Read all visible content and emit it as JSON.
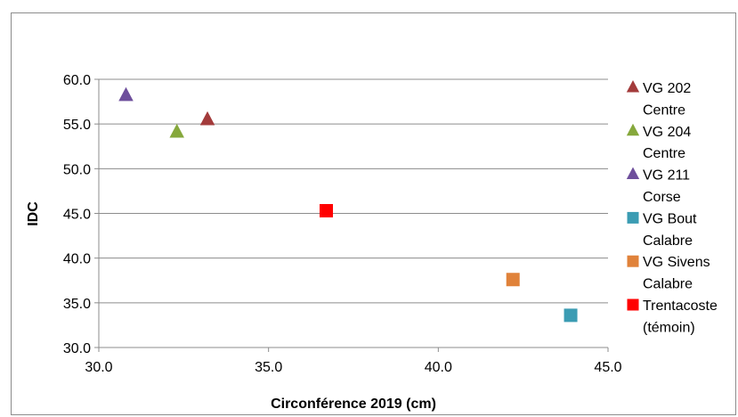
{
  "chart_data": {
    "type": "scatter",
    "title": "",
    "xlabel": "Circonférence 2019 (cm)",
    "ylabel": "IDC",
    "xlim": [
      30.0,
      45.0
    ],
    "ylim": [
      30.0,
      60.0
    ],
    "x_ticks": [
      "30.0",
      "35.0",
      "40.0",
      "45.0"
    ],
    "y_ticks": [
      "30.0",
      "35.0",
      "40.0",
      "45.0",
      "50.0",
      "55.0",
      "60.0"
    ],
    "grid": "horizontal",
    "legend_position": "right",
    "series": [
      {
        "name_lines": [
          "VG 202",
          "Centre"
        ],
        "marker": "triangle",
        "color": "#a33b3b",
        "points": [
          {
            "x": 33.2,
            "y": 55.5
          }
        ]
      },
      {
        "name_lines": [
          "VG 204",
          "Centre"
        ],
        "marker": "triangle",
        "color": "#86a83c",
        "points": [
          {
            "x": 32.3,
            "y": 54.1
          }
        ]
      },
      {
        "name_lines": [
          "VG 211",
          "Corse"
        ],
        "marker": "triangle",
        "color": "#6e4f9c",
        "points": [
          {
            "x": 30.8,
            "y": 58.2
          }
        ]
      },
      {
        "name_lines": [
          "VG Bout",
          "Calabre"
        ],
        "marker": "square",
        "color": "#3b9cb3",
        "points": [
          {
            "x": 43.9,
            "y": 33.6
          }
        ]
      },
      {
        "name_lines": [
          "VG Sivens",
          "Calabre"
        ],
        "marker": "square",
        "color": "#e0823a",
        "points": [
          {
            "x": 42.2,
            "y": 37.6
          }
        ]
      },
      {
        "name_lines": [
          "Trentacoste",
          "(témoin)"
        ],
        "marker": "square",
        "color": "#ff0000",
        "points": [
          {
            "x": 36.7,
            "y": 45.3
          }
        ]
      }
    ]
  }
}
